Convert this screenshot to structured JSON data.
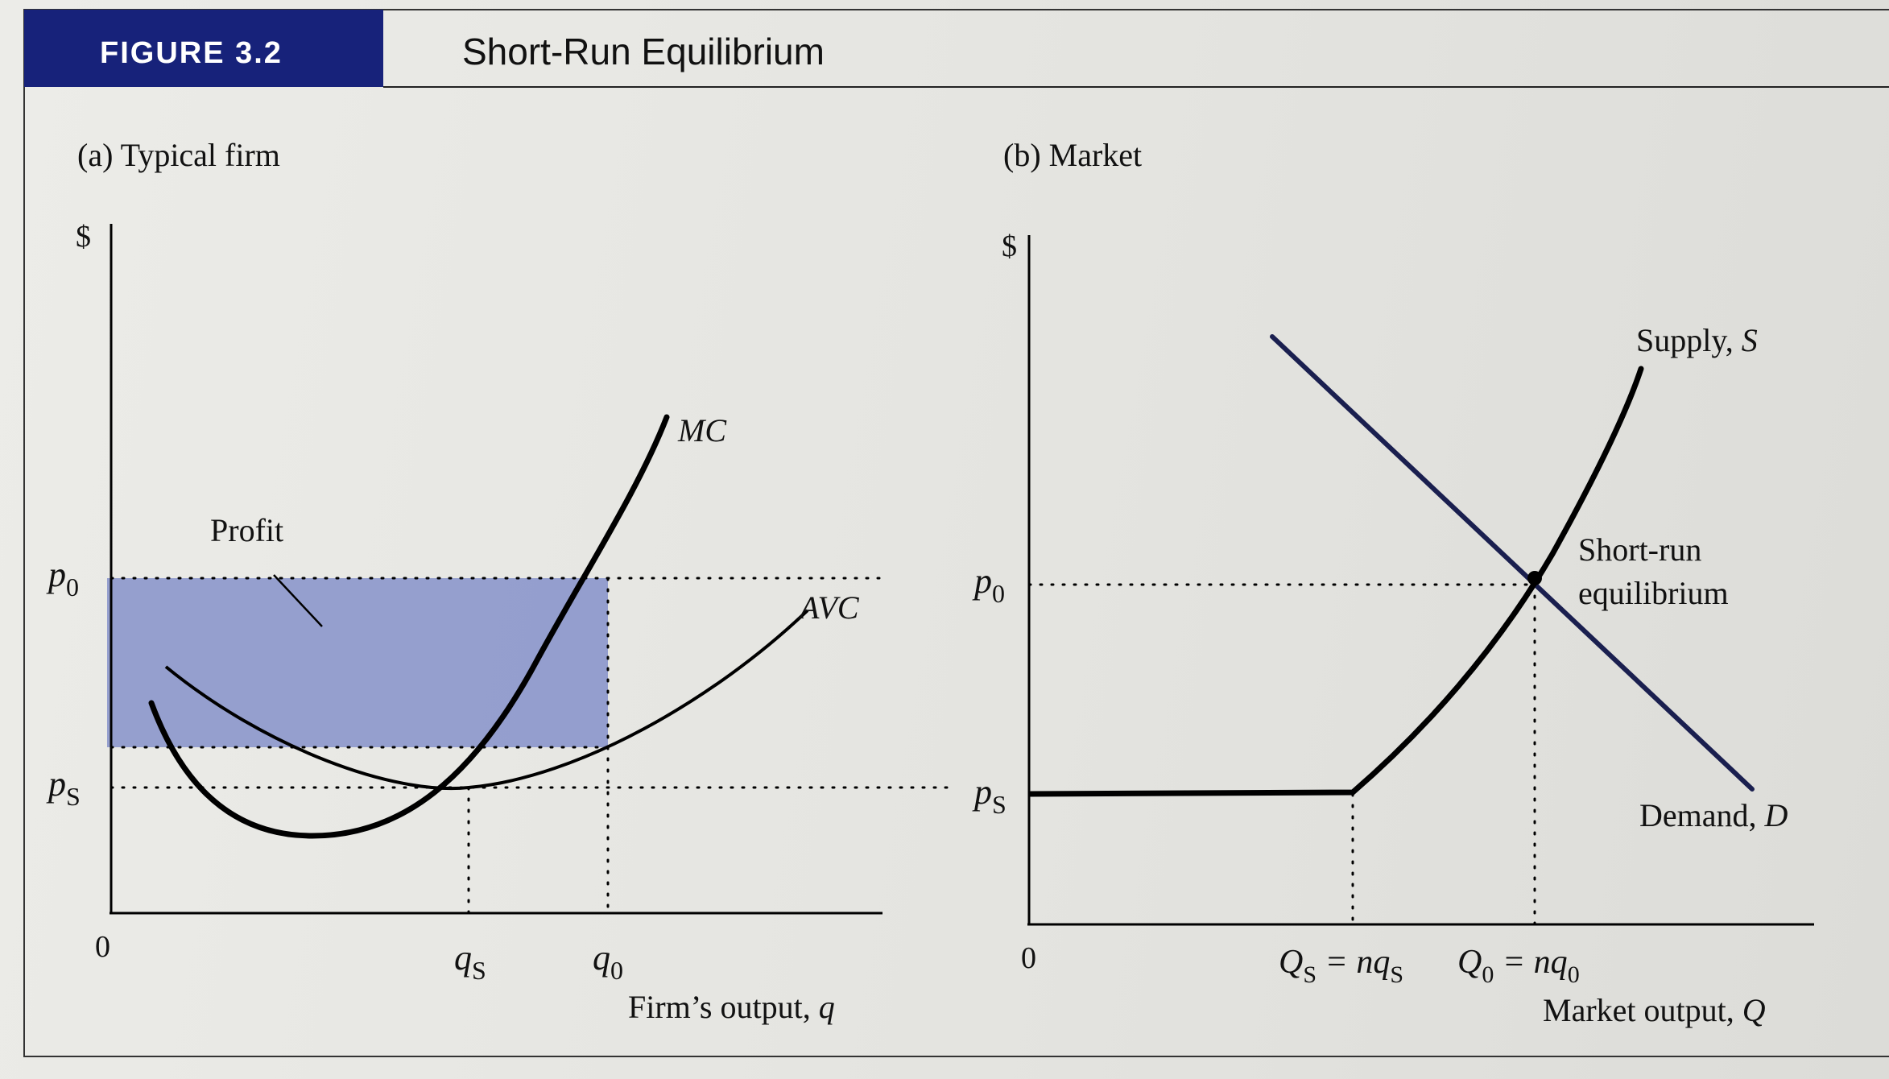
{
  "header": {
    "figure_tag": "FIGURE 3.2",
    "title": "Short-Run Equilibrium"
  },
  "panel_a": {
    "title": "(a) Typical firm",
    "y_axis_label": "$",
    "x_axis_label": "Firm’s output,",
    "x_axis_var": "q",
    "origin": "0",
    "profit_label": "Profit",
    "mc_label": "MC",
    "avc_label": "AVC",
    "p0_main": "p",
    "p0_sub": "0",
    "ps_main": "p",
    "ps_sub": "S",
    "qs_main": "q",
    "qs_sub": "S",
    "q0_main": "q",
    "q0_sub": "0"
  },
  "panel_b": {
    "title": "(b) Market",
    "y_axis_label": "$",
    "x_axis_label": "Market output,",
    "x_axis_var": "Q",
    "origin": "0",
    "supply_label": "Supply,",
    "supply_var": "S",
    "demand_label": "Demand,",
    "demand_var": "D",
    "equilibrium_line1": "Short-run",
    "equilibrium_line2": "equilibrium",
    "p0_main": "p",
    "p0_sub": "0",
    "ps_main": "p",
    "ps_sub": "S",
    "QS_main": "Q",
    "QS_sub": "S",
    "QS_eq": " = nq",
    "QS_eq_sub": "S",
    "Q0_main": "Q",
    "Q0_sub": "0",
    "Q0_eq": " = nq",
    "Q0_eq_sub": "0"
  },
  "colors": {
    "header_band": "#17227a",
    "profit_fill": "#8d98cc",
    "demand_line": "#1a1f4f",
    "curve": "#000000"
  }
}
